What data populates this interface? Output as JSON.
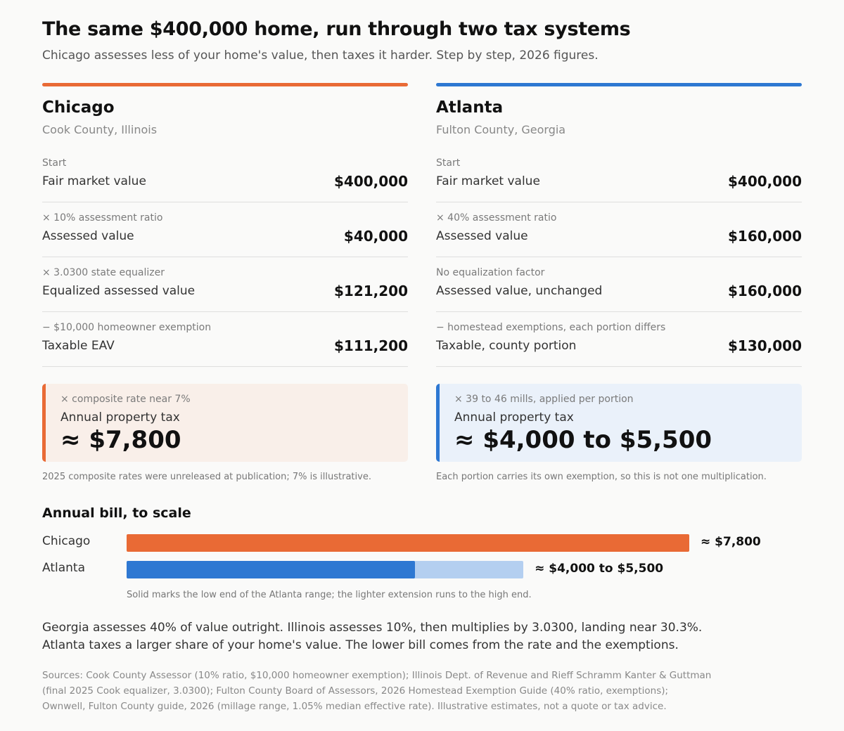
{
  "header": {
    "title": "The same $400,000 home, run through two tax systems",
    "subtitle": "Chicago assesses less of your home's value, then taxes it harder. Step by step, 2026 figures."
  },
  "columns": [
    {
      "city": "Chicago",
      "county": "Cook County, Illinois",
      "steps": [
        {
          "op": "Start",
          "label": "Fair market value",
          "value": "$400,000"
        },
        {
          "op": "× 10% assessment ratio",
          "label": "Assessed value",
          "value": "$40,000"
        },
        {
          "op": "× 3.0300 state equalizer",
          "label": "Equalized assessed value",
          "value": "$121,200"
        },
        {
          "op": "− $10,000 homeowner exemption",
          "label": "Taxable EAV",
          "value": "$111,200"
        }
      ],
      "result": {
        "op": "× composite rate near 7%",
        "label": "Annual property tax",
        "value": "≈ $7,800"
      },
      "note": "2025 composite rates were unreleased at publication; 7% is illustrative."
    },
    {
      "city": "Atlanta",
      "county": "Fulton County, Georgia",
      "steps": [
        {
          "op": "Start",
          "label": "Fair market value",
          "value": "$400,000"
        },
        {
          "op": "× 40% assessment ratio",
          "label": "Assessed value",
          "value": "$160,000"
        },
        {
          "op": "No equalization factor",
          "label": "Assessed value, unchanged",
          "value": "$160,000"
        },
        {
          "op": "− homestead exemptions, each portion differs",
          "label": "Taxable, county portion",
          "value": "$130,000"
        }
      ],
      "result": {
        "op": "× 39 to 46 mills, applied per portion",
        "label": "Annual property tax",
        "value": "≈ $4,000 to $5,500"
      },
      "note": "Each portion carries its own exemption, so this is not one multiplication."
    }
  ],
  "colors": {
    "chicago": "#e96a35",
    "chicago_bg": "#f9efe9",
    "atlanta": "#2e78d2",
    "atlanta_light": "#b4cff0",
    "atlanta_bg": "#eaf1fa"
  },
  "chart_data": {
    "type": "bar",
    "title": "Annual bill, to scale",
    "categories": [
      "Chicago",
      "Atlanta"
    ],
    "series": [
      {
        "values": [
          7800,
          4000
        ]
      },
      {
        "values": [
          null,
          5500
        ]
      }
    ],
    "value_labels": [
      "≈ $7,800",
      "≈ $4,000 to $5,500"
    ],
    "note": "Solid marks the low end of the Atlanta range; the lighter extension runs to the high end."
  },
  "summary": [
    "Georgia assesses 40% of value outright. Illinois assesses 10%, then multiplies by 3.0300, landing near 30.3%.",
    "Atlanta taxes a larger share of your home's value. The lower bill comes from the rate and the exemptions."
  ],
  "sources": [
    "Sources: Cook County Assessor (10% ratio, $10,000 homeowner exemption); Illinois Dept. of Revenue and Rieff Schramm Kanter & Guttman",
    "(final 2025 Cook equalizer, 3.0300); Fulton County Board of Assessors, 2026 Homestead Exemption Guide (40% ratio, exemptions);",
    "Ownwell, Fulton County guide, 2026 (millage range, 1.05% median effective rate). Illustrative estimates, not a quote or tax advice."
  ]
}
